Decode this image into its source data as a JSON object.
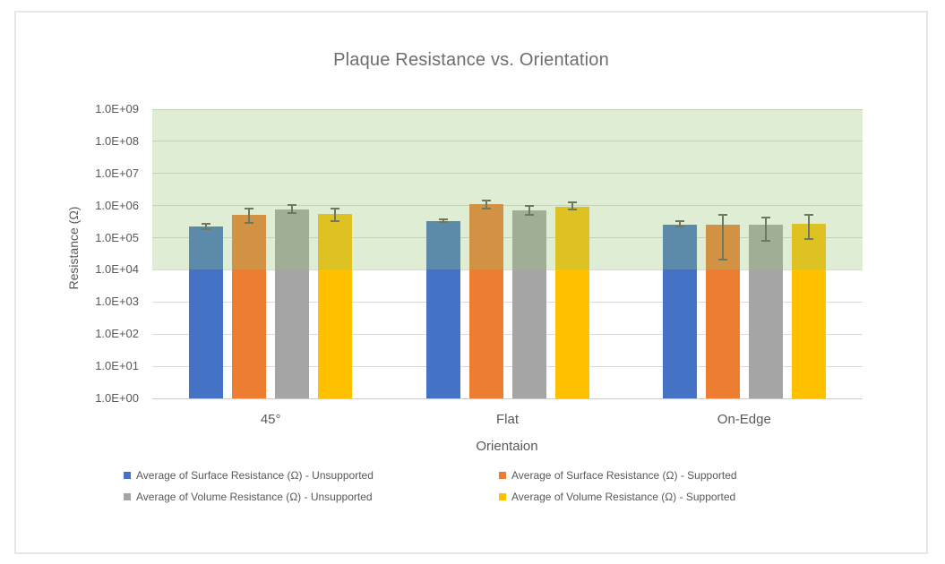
{
  "chart_data": {
    "type": "bar",
    "scale": "log",
    "title": "Plaque Resistance vs. Orientation",
    "xlabel": "Orientaion",
    "ylabel": "Resistance (Ω)",
    "ylim": [
      1,
      1000000000
    ],
    "y_tick_labels": [
      "1.0E+09",
      "1.0E+08",
      "1.0E+07",
      "1.0E+06",
      "1.0E+05",
      "1.0E+04",
      "1.0E+03",
      "1.0E+02",
      "1.0E+01",
      "1.0E+00"
    ],
    "categories": [
      "45°",
      "Flat",
      "On-Edge"
    ],
    "series": [
      {
        "name": "Average of Surface Resistance (Ω) - Unsupported",
        "color": "#4472C4",
        "values": [
          220000,
          320000,
          260000
        ],
        "error_low": [
          180000,
          300000,
          230000
        ],
        "error_high": [
          270000,
          380000,
          330000
        ]
      },
      {
        "name": "Average of Surface Resistance (Ω) - Supported",
        "color": "#ED7D31",
        "values": [
          530000,
          1100000,
          250000
        ],
        "error_low": [
          290000,
          800000,
          21000
        ],
        "error_high": [
          830000,
          1400000,
          520000
        ]
      },
      {
        "name": "Average of Volume Resistance (Ω) - Unsupported",
        "color": "#A5A5A5",
        "values": [
          780000,
          730000,
          250000
        ],
        "error_low": [
          580000,
          530000,
          78000
        ],
        "error_high": [
          1070000,
          1000000,
          420000
        ]
      },
      {
        "name": "Average of Volume Resistance (Ω) - Supported",
        "color": "#FFC000",
        "values": [
          540000,
          930000,
          270000
        ],
        "error_low": [
          320000,
          740000,
          89000
        ],
        "error_high": [
          790000,
          1270000,
          510000
        ]
      }
    ],
    "highlight_band": {
      "from": 10000,
      "to": 1000000000,
      "color_rgba": "rgba(146,196,111,0.3)"
    },
    "grid": "horizontal",
    "legend_position": "bottom",
    "error_bar_color": "#595959",
    "gridline_color": "#d9d9d9"
  }
}
